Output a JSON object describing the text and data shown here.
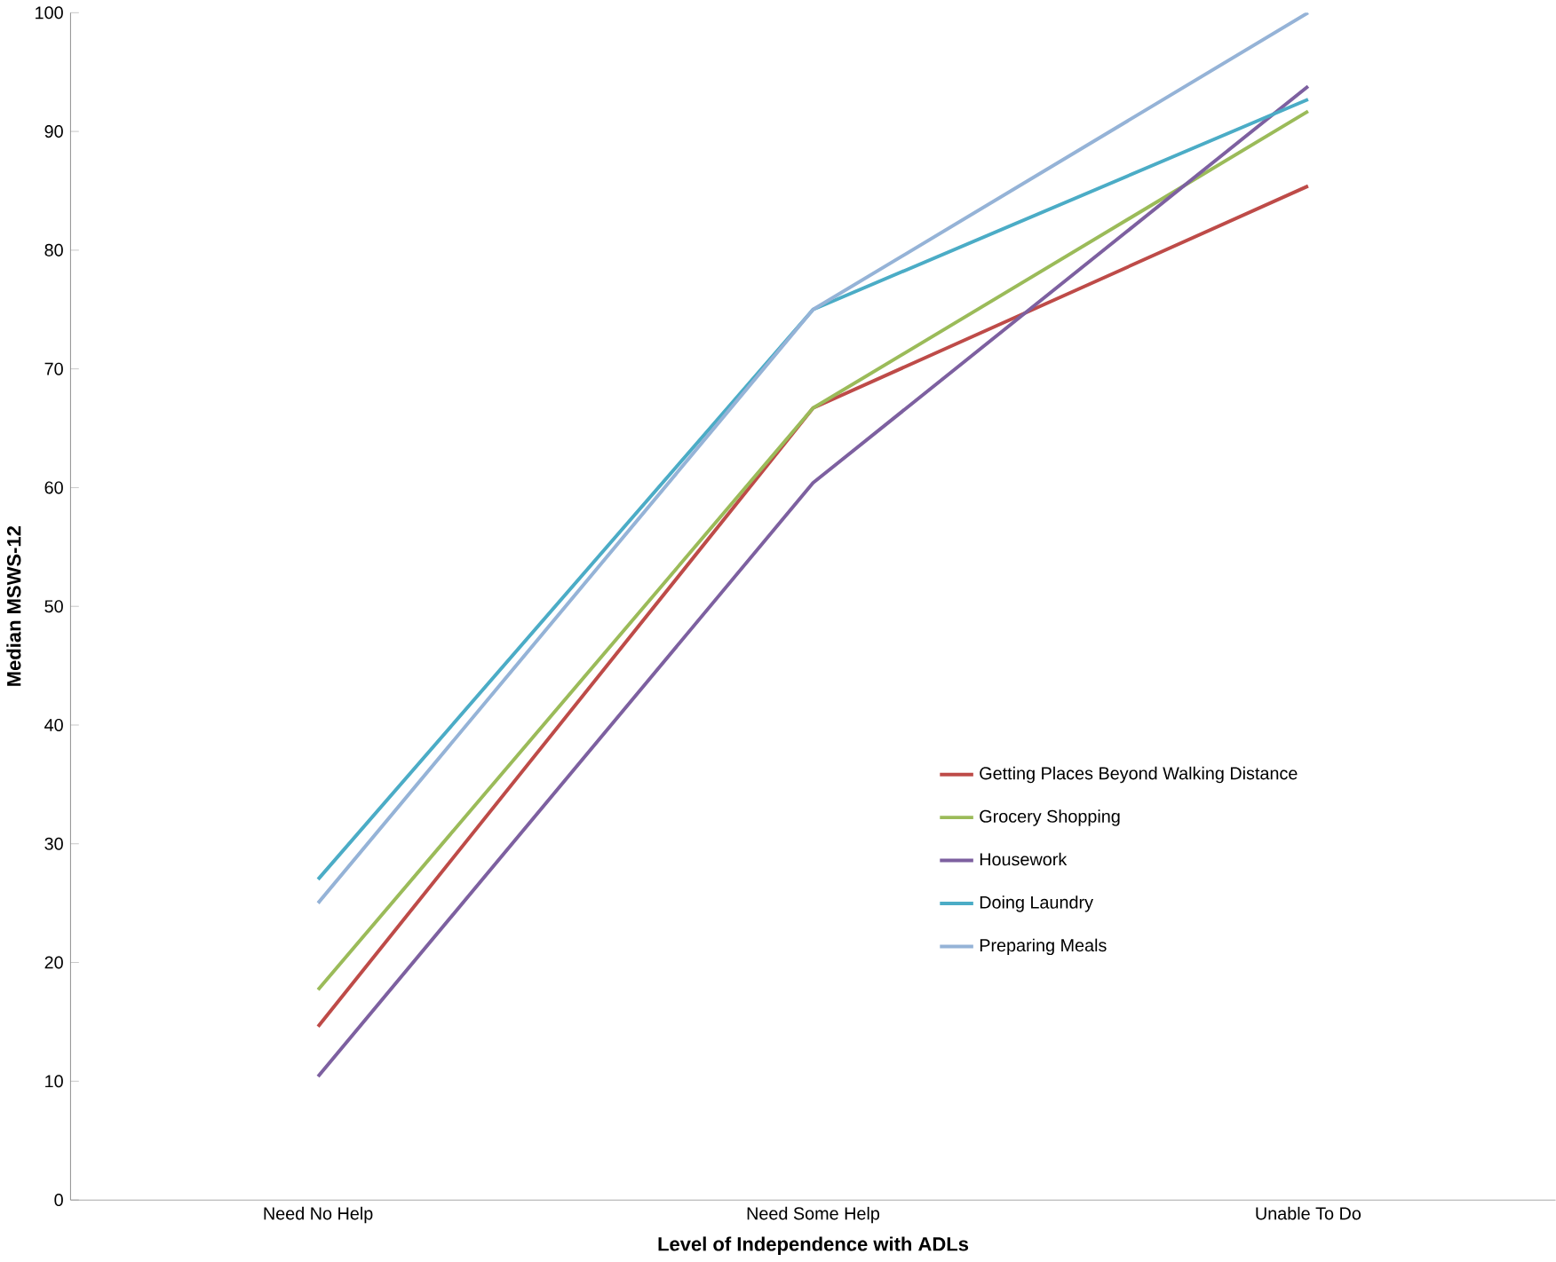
{
  "chart_data": {
    "type": "line",
    "xlabel": "Level of Independence with ADLs",
    "ylabel": "Median MSWS-12",
    "categories": [
      "Need No Help",
      "Need Some Help",
      "Unable To Do"
    ],
    "series": [
      {
        "name": "Getting Places Beyond Walking Distance",
        "color": "#be4b48",
        "values": [
          14.6,
          66.7,
          85.4
        ]
      },
      {
        "name": "Grocery Shopping",
        "color": "#9bbb59",
        "values": [
          17.7,
          66.7,
          91.7
        ]
      },
      {
        "name": "Housework",
        "color": "#7d60a0",
        "values": [
          10.4,
          60.4,
          93.8
        ]
      },
      {
        "name": "Doing Laundry",
        "color": "#4bacc6",
        "values": [
          27,
          75,
          92.7
        ]
      },
      {
        "name": "Preparing Meals",
        "color": "#95b3d7",
        "values": [
          25,
          75,
          100
        ]
      }
    ],
    "ylim": [
      0,
      100
    ],
    "yticks": [
      0,
      10,
      20,
      30,
      40,
      50,
      60,
      70,
      80,
      90,
      100
    ],
    "grid": false,
    "legend": "right",
    "marker": "none",
    "line_style": "solid"
  }
}
